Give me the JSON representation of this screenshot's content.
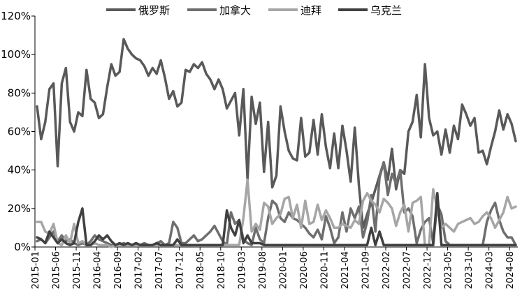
{
  "chart_data": {
    "type": "line",
    "title": "",
    "xlabel": "",
    "ylabel": "",
    "ylim": [
      0,
      120
    ],
    "y_ticks": [
      "0%",
      "20%",
      "40%",
      "60%",
      "80%",
      "100%",
      "120%"
    ],
    "x_tick_labels": [
      "2015-01",
      "2015-06",
      "2015-11",
      "2016-04",
      "2016-09",
      "2017-02",
      "2017-07",
      "2017-12",
      "2018-05",
      "2018-10",
      "2019-03",
      "2019-08",
      "2020-01",
      "2020-06",
      "2020-11",
      "2021-04",
      "2021-09",
      "2022-02",
      "2022-07",
      "2022-12",
      "2023-05",
      "2023-10",
      "2024-03",
      "2024-08"
    ],
    "grid": false,
    "legend_position": "top",
    "x_start": "2015-01",
    "x_end": "2024-08",
    "series": [
      {
        "name": "俄罗斯",
        "color": "#595959",
        "values": [
          73,
          56,
          65,
          82,
          85,
          42,
          85,
          93,
          65,
          60,
          70,
          68,
          92,
          77,
          75,
          67,
          69,
          83,
          95,
          89,
          91,
          108,
          103,
          100,
          98,
          97,
          94,
          89,
          93,
          90,
          97,
          88,
          77,
          81,
          73,
          75,
          92,
          91,
          95,
          93,
          96,
          90,
          87,
          82,
          87,
          82,
          72,
          76,
          80,
          58,
          82,
          35,
          78,
          64,
          75,
          39,
          65,
          31,
          37,
          73,
          60,
          50,
          46,
          45,
          67,
          47,
          49,
          66,
          48,
          69,
          52,
          41,
          59,
          41,
          63,
          50,
          34,
          62,
          32,
          10,
          17,
          23,
          30,
          37,
          44,
          35,
          51,
          30,
          40,
          38,
          60,
          65,
          79,
          57,
          95,
          67,
          58,
          60,
          48,
          61,
          49,
          63,
          56,
          74,
          69,
          63,
          67,
          49,
          50,
          43,
          52,
          60,
          71,
          61,
          69,
          64,
          55
        ]
      },
      {
        "name": "加拿大",
        "color": "#6e6e6e",
        "values": [
          3,
          4,
          2,
          5,
          8,
          3,
          6,
          3,
          4,
          2,
          1,
          2,
          1,
          3,
          6,
          4,
          3,
          2,
          1,
          1,
          1,
          2,
          1,
          1,
          2,
          1,
          2,
          1,
          1,
          2,
          3,
          1,
          2,
          13,
          10,
          2,
          2,
          4,
          6,
          3,
          4,
          6,
          8,
          11,
          7,
          3,
          1,
          18,
          12,
          14,
          4,
          2,
          1,
          10,
          4,
          2,
          15,
          24,
          22,
          15,
          13,
          18,
          15,
          14,
          12,
          10,
          7,
          5,
          9,
          4,
          16,
          10,
          2,
          5,
          18,
          8,
          20,
          15,
          21,
          5,
          13,
          27,
          8,
          36,
          44,
          27,
          38,
          33,
          40,
          18,
          20,
          16,
          2,
          9,
          13,
          15,
          2,
          22,
          17,
          3,
          1,
          1,
          1,
          1,
          1,
          1,
          1,
          1,
          1,
          13,
          19,
          23,
          14,
          8,
          5,
          5,
          1
        ]
      },
      {
        "name": "迪拜",
        "color": "#a6a6a6",
        "values": [
          13,
          13,
          8,
          7,
          12,
          2,
          1,
          6,
          2,
          12,
          2,
          3,
          1,
          1,
          2,
          1,
          1,
          1,
          0,
          1,
          1,
          1,
          1,
          1,
          1,
          1,
          1,
          1,
          1,
          1,
          1,
          1,
          1,
          1,
          1,
          1,
          1,
          1,
          1,
          1,
          1,
          1,
          1,
          1,
          1,
          1,
          1,
          1,
          1,
          1,
          15,
          35,
          8,
          12,
          9,
          23,
          21,
          12,
          15,
          17,
          25,
          26,
          15,
          22,
          10,
          24,
          12,
          13,
          22,
          14,
          19,
          15,
          10,
          10,
          12,
          11,
          10,
          14,
          12,
          24,
          28,
          24,
          22,
          18,
          25,
          23,
          20,
          11,
          18,
          22,
          8,
          23,
          24,
          26,
          1,
          1,
          30,
          20,
          10,
          12,
          10,
          8,
          12,
          13,
          14,
          15,
          12,
          13,
          16,
          18,
          15,
          10,
          14,
          18,
          26,
          20,
          21
        ]
      },
      {
        "name": "乌克兰",
        "color": "#404040",
        "values": [
          5,
          4,
          2,
          8,
          5,
          2,
          4,
          2,
          1,
          2,
          13,
          20,
          1,
          1,
          3,
          6,
          4,
          6,
          3,
          1,
          2,
          1,
          2,
          1,
          2,
          1,
          1,
          1,
          1,
          2,
          1,
          1,
          1,
          1,
          4,
          1,
          1,
          1,
          1,
          1,
          1,
          1,
          1,
          1,
          1,
          1,
          19,
          10,
          6,
          14,
          2,
          6,
          2,
          2,
          2,
          1,
          1,
          1,
          1,
          1,
          1,
          1,
          1,
          1,
          1,
          1,
          1,
          1,
          1,
          1,
          1,
          1,
          1,
          1,
          1,
          1,
          1,
          1,
          1,
          1,
          1,
          10,
          1,
          8,
          1,
          1,
          1,
          1,
          1,
          1,
          1,
          1,
          1,
          1,
          1,
          1,
          1,
          28,
          1,
          1,
          1,
          1,
          1,
          1,
          1,
          1,
          1,
          1,
          1,
          1,
          1,
          1,
          1,
          1,
          1,
          1,
          1
        ]
      }
    ]
  }
}
